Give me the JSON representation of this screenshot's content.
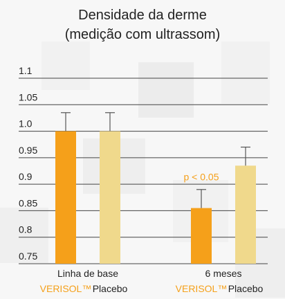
{
  "chart_data": {
    "type": "bar",
    "title": "Densidade da derme",
    "subtitle": "(medição com ultrassom)",
    "categories": [
      "Linha de base",
      "6 meses"
    ],
    "series": [
      {
        "name": "VERISOL™",
        "color": "#f5a01a",
        "values": [
          1.0,
          0.855
        ],
        "errors": [
          0.035,
          0.035
        ]
      },
      {
        "name": "Placebo",
        "color": "#f0d98c",
        "values": [
          1.0,
          0.935
        ],
        "errors": [
          0.035,
          0.035
        ]
      }
    ],
    "annotations": [
      {
        "text": "p < 0.05",
        "color": "#f5a01a"
      }
    ],
    "ylim": [
      0.75,
      1.1
    ],
    "yticks": [
      0.75,
      0.8,
      0.85,
      0.9,
      0.95,
      {
        "value": 1,
        "label": "1.0"
      },
      1.05,
      1.1
    ],
    "grid": true
  }
}
